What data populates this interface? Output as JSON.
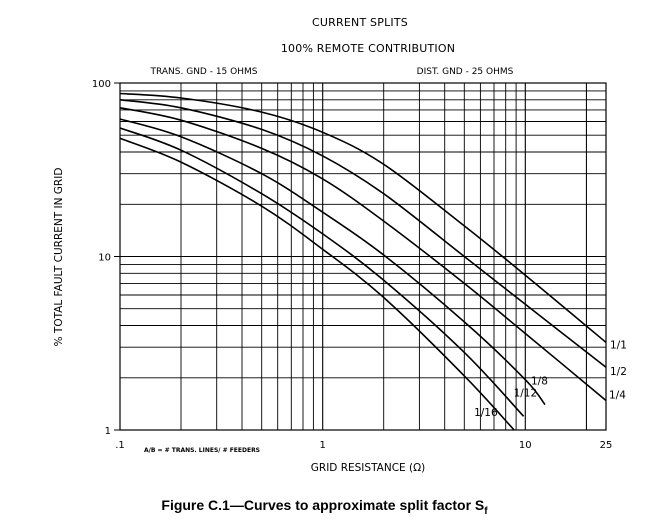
{
  "chart_data": {
    "type": "line",
    "title": "CURRENT SPLITS",
    "subtitle": "100% REMOTE CONTRIBUTION",
    "left_note": "TRANS. GND - 15 OHMS",
    "right_note": "DIST. GND - 25 OHMS",
    "xlabel": "GRID RESISTANCE (Ω)",
    "ylabel": "% TOTAL FAULT CURRENT IN GRID",
    "x_scale": "log",
    "y_scale": "log",
    "xlim": [
      0.1,
      25
    ],
    "ylim": [
      1,
      100
    ],
    "x_tick_labels": [
      {
        "value": 0.1,
        "label": ".1"
      },
      {
        "value": 1,
        "label": "1"
      },
      {
        "value": 10,
        "label": "10"
      },
      {
        "value": 25,
        "label": "25"
      }
    ],
    "y_tick_labels": [
      {
        "value": 1,
        "label": "1"
      },
      {
        "value": 10,
        "label": "10"
      },
      {
        "value": 100,
        "label": "100"
      }
    ],
    "axis_note": "A/B = # TRANS. LINES/ # FEEDERS",
    "grid": true,
    "series": [
      {
        "name": "1/1",
        "x": [
          0.1,
          0.2,
          0.5,
          1,
          2,
          5,
          10,
          25
        ],
        "y": [
          87,
          82,
          68,
          52,
          34,
          15,
          7.8,
          3.2
        ]
      },
      {
        "name": "1/2",
        "x": [
          0.1,
          0.2,
          0.5,
          1,
          2,
          5,
          10,
          25
        ],
        "y": [
          80,
          72,
          54,
          38,
          23,
          10,
          5.3,
          2.3
        ]
      },
      {
        "name": "1/4",
        "x": [
          0.1,
          0.2,
          0.5,
          1,
          2,
          5,
          10,
          25
        ],
        "y": [
          72,
          61,
          42,
          28,
          16,
          7.0,
          3.6,
          1.48
        ]
      },
      {
        "name": "1/8",
        "x": [
          0.1,
          0.2,
          0.5,
          1,
          2,
          5,
          10,
          12.5
        ],
        "y": [
          62,
          49,
          30,
          18,
          10.2,
          4.2,
          1.95,
          1.4
        ]
      },
      {
        "name": "1/12",
        "x": [
          0.1,
          0.2,
          0.5,
          1,
          2,
          5,
          9.8
        ],
        "y": [
          55,
          41,
          23,
          13.5,
          7.3,
          2.8,
          1.2
        ]
      },
      {
        "name": "1/16",
        "x": [
          0.1,
          0.2,
          0.5,
          1,
          2,
          5,
          8.8
        ],
        "y": [
          48,
          35,
          19.5,
          11,
          5.8,
          2.05,
          1.0
        ]
      }
    ],
    "curve_labels": [
      {
        "series": "1/1",
        "text": "1/1"
      },
      {
        "series": "1/2",
        "text": "1/2"
      },
      {
        "series": "1/4",
        "text": "1/4"
      },
      {
        "series": "1/8",
        "text": "1/8"
      },
      {
        "series": "1/12",
        "text": "1/12"
      },
      {
        "series": "1/16",
        "text": "1/16"
      }
    ]
  },
  "caption": {
    "text": "Figure C.1—Curves to approximate split factor S",
    "subscript": "f"
  }
}
